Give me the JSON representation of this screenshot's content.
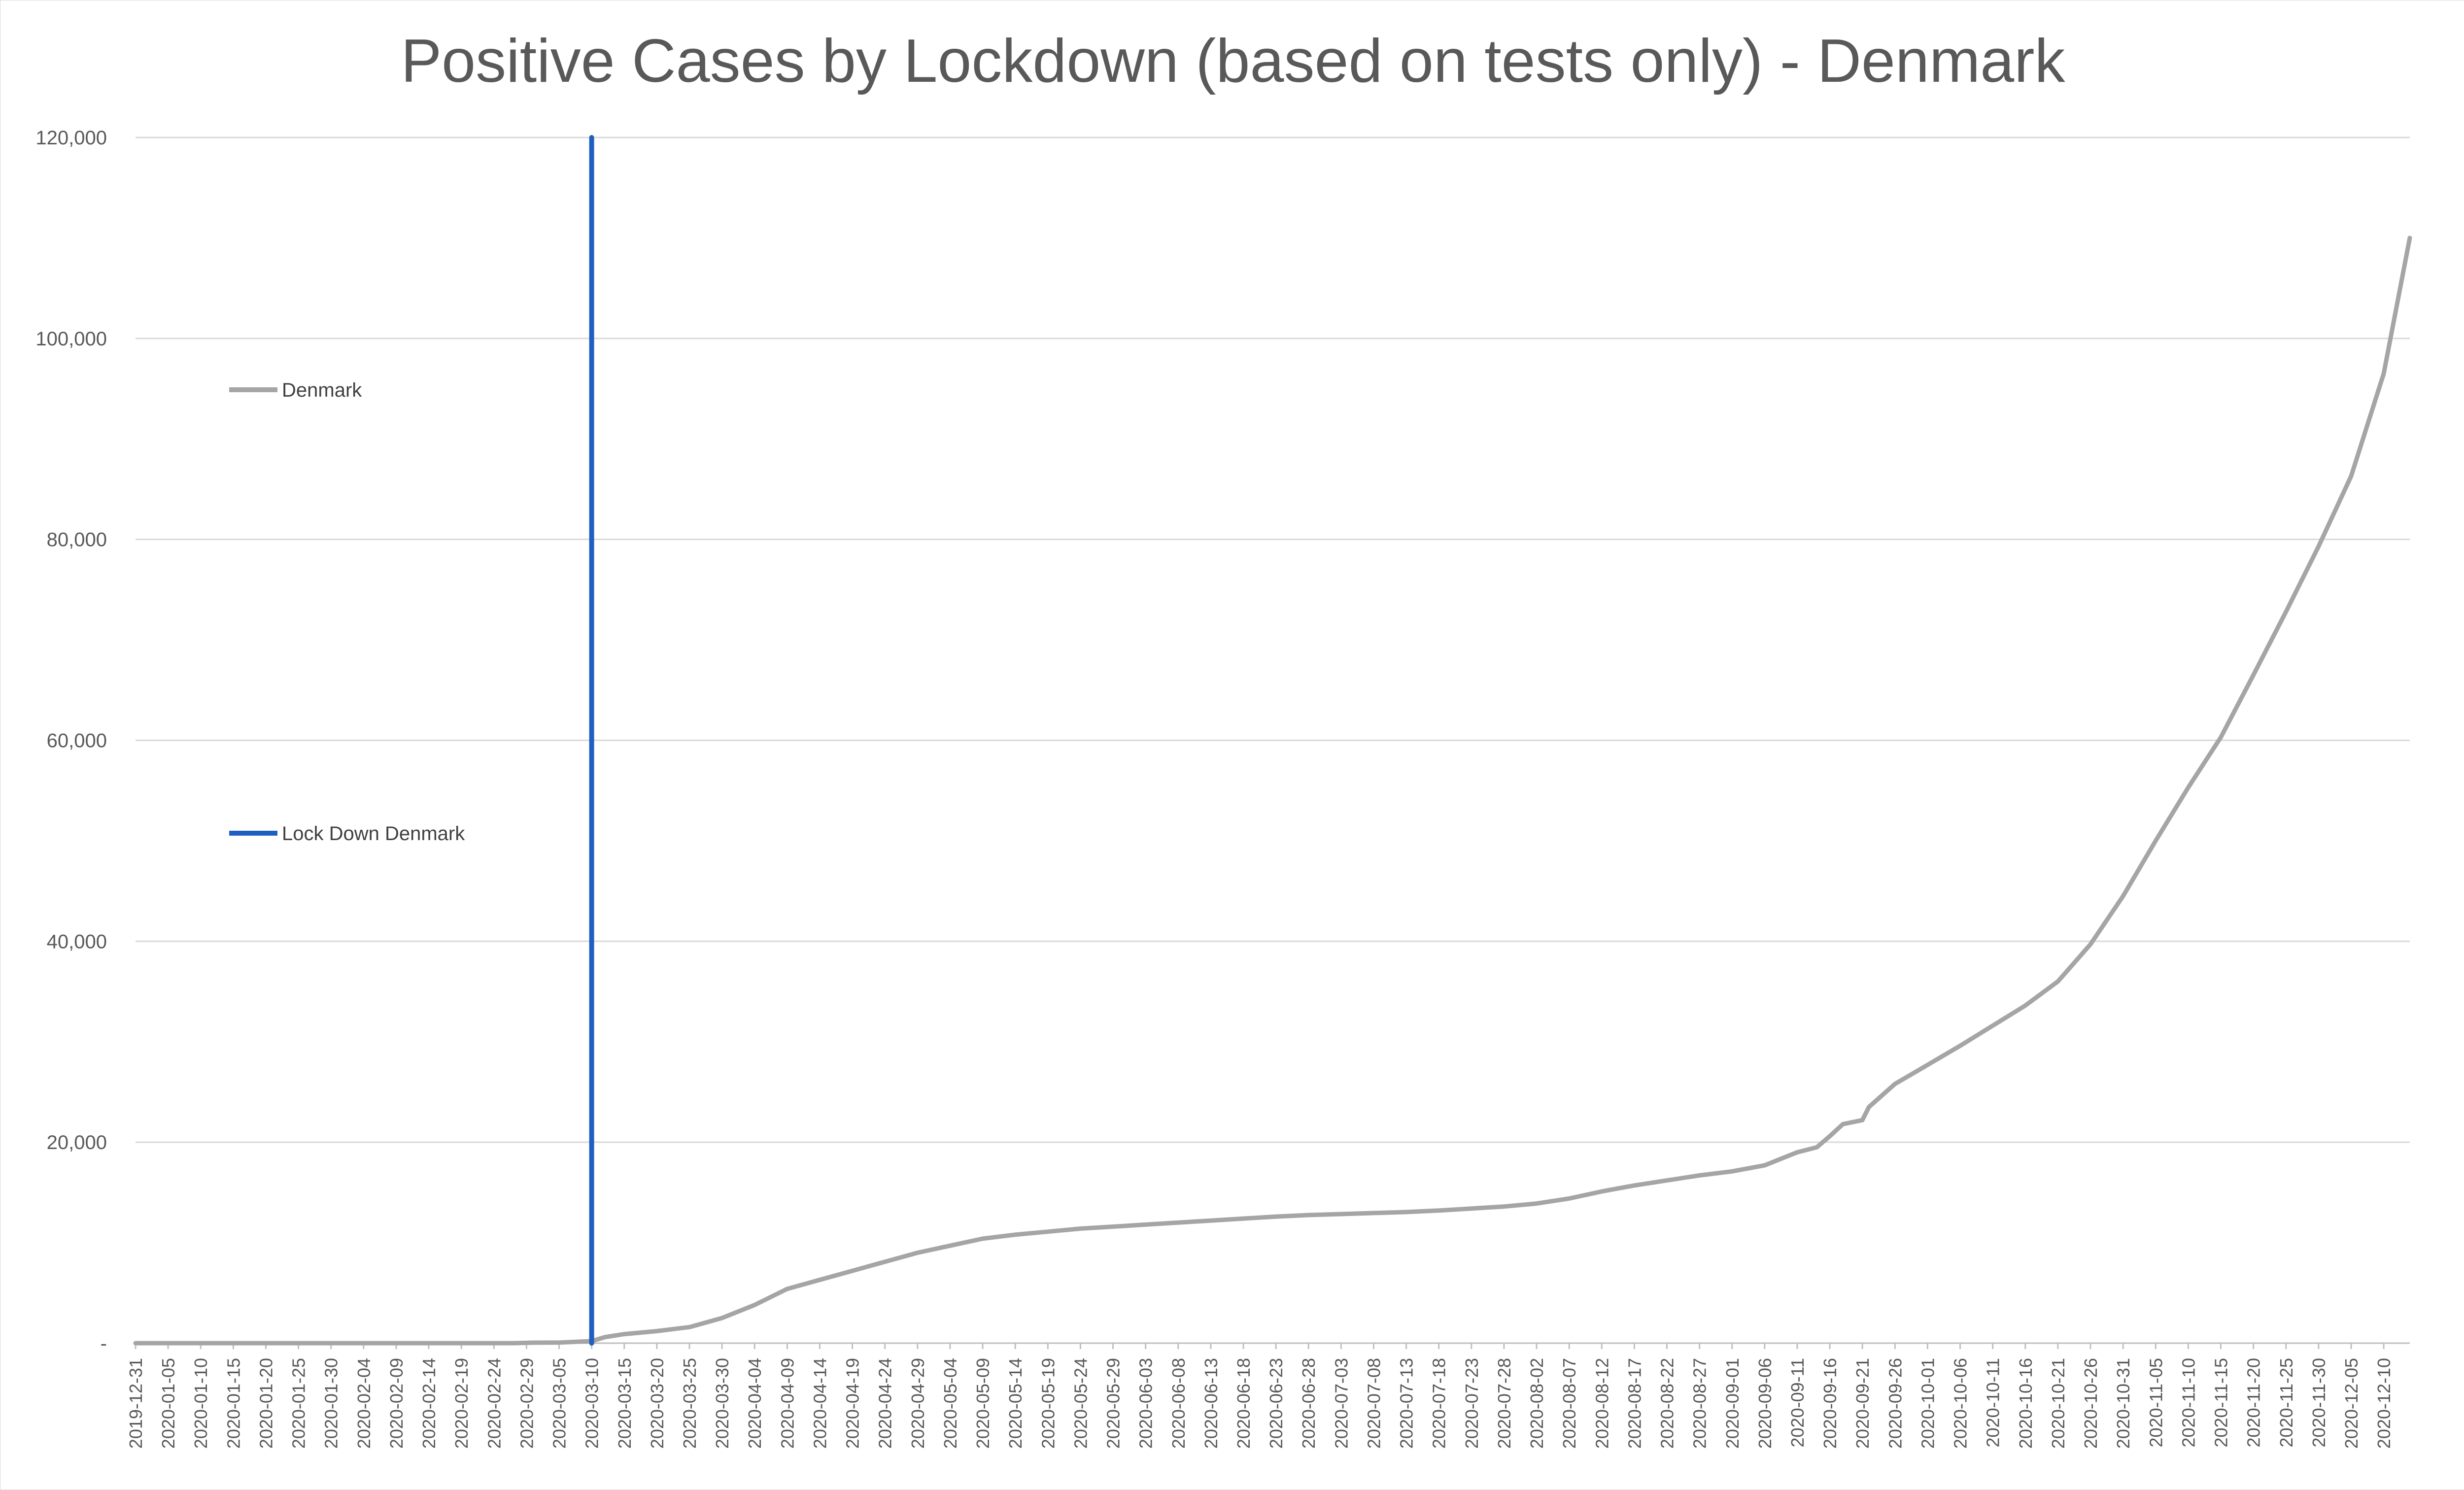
{
  "chart_data": {
    "type": "line",
    "title": "Positive Cases by Lockdown (based on tests only) - Denmark",
    "xlabel": "",
    "ylabel": "",
    "ylim": [
      0,
      120000
    ],
    "y_ticks": [
      {
        "value": 0,
        "label": "-"
      },
      {
        "value": 20000,
        "label": "20,000"
      },
      {
        "value": 40000,
        "label": "40,000"
      },
      {
        "value": 60000,
        "label": "60,000"
      },
      {
        "value": 80000,
        "label": "80,000"
      },
      {
        "value": 100000,
        "label": "100,000"
      },
      {
        "value": 120000,
        "label": "120,000"
      }
    ],
    "grid": "horizontal",
    "x_range": [
      "2019-12-31",
      "2020-12-14"
    ],
    "x_tick_labels": [
      "2019-12-31",
      "2020-01-05",
      "2020-01-10",
      "2020-01-15",
      "2020-01-20",
      "2020-01-25",
      "2020-01-30",
      "2020-02-04",
      "2020-02-09",
      "2020-02-14",
      "2020-02-19",
      "2020-02-24",
      "2020-02-29",
      "2020-03-05",
      "2020-03-10",
      "2020-03-15",
      "2020-03-20",
      "2020-03-25",
      "2020-03-30",
      "2020-04-04",
      "2020-04-09",
      "2020-04-14",
      "2020-04-19",
      "2020-04-24",
      "2020-04-29",
      "2020-05-04",
      "2020-05-09",
      "2020-05-14",
      "2020-05-19",
      "2020-05-24",
      "2020-05-29",
      "2020-06-03",
      "2020-06-08",
      "2020-06-13",
      "2020-06-18",
      "2020-06-23",
      "2020-06-28",
      "2020-07-03",
      "2020-07-08",
      "2020-07-13",
      "2020-07-18",
      "2020-07-23",
      "2020-07-28",
      "2020-08-02",
      "2020-08-07",
      "2020-08-12",
      "2020-08-17",
      "2020-08-22",
      "2020-08-27",
      "2020-09-01",
      "2020-09-06",
      "2020-09-11",
      "2020-09-16",
      "2020-09-21",
      "2020-09-26",
      "2020-10-01",
      "2020-10-06",
      "2020-10-11",
      "2020-10-16",
      "2020-10-21",
      "2020-10-26",
      "2020-10-31",
      "2020-11-05",
      "2020-11-10",
      "2020-11-15",
      "2020-11-20",
      "2020-11-25",
      "2020-11-30",
      "2020-12-05",
      "2020-12-10"
    ],
    "legend_placement": "left",
    "series": [
      {
        "name": "Denmark",
        "color": "#a5a5a5",
        "points": [
          {
            "x": "2019-12-31",
            "y": 0
          },
          {
            "x": "2020-02-27",
            "y": 0
          },
          {
            "x": "2020-03-01",
            "y": 50
          },
          {
            "x": "2020-03-05",
            "y": 60
          },
          {
            "x": "2020-03-10",
            "y": 200
          },
          {
            "x": "2020-03-12",
            "y": 600
          },
          {
            "x": "2020-03-15",
            "y": 900
          },
          {
            "x": "2020-03-20",
            "y": 1200
          },
          {
            "x": "2020-03-25",
            "y": 1600
          },
          {
            "x": "2020-03-30",
            "y": 2500
          },
          {
            "x": "2020-04-04",
            "y": 3800
          },
          {
            "x": "2020-04-09",
            "y": 5400
          },
          {
            "x": "2020-04-14",
            "y": 6300
          },
          {
            "x": "2020-04-19",
            "y": 7200
          },
          {
            "x": "2020-04-24",
            "y": 8100
          },
          {
            "x": "2020-04-29",
            "y": 9000
          },
          {
            "x": "2020-05-04",
            "y": 9700
          },
          {
            "x": "2020-05-09",
            "y": 10400
          },
          {
            "x": "2020-05-14",
            "y": 10800
          },
          {
            "x": "2020-05-19",
            "y": 11100
          },
          {
            "x": "2020-05-24",
            "y": 11400
          },
          {
            "x": "2020-05-29",
            "y": 11600
          },
          {
            "x": "2020-06-03",
            "y": 11800
          },
          {
            "x": "2020-06-08",
            "y": 12000
          },
          {
            "x": "2020-06-13",
            "y": 12200
          },
          {
            "x": "2020-06-18",
            "y": 12400
          },
          {
            "x": "2020-06-23",
            "y": 12600
          },
          {
            "x": "2020-06-28",
            "y": 12750
          },
          {
            "x": "2020-07-03",
            "y": 12850
          },
          {
            "x": "2020-07-08",
            "y": 12950
          },
          {
            "x": "2020-07-13",
            "y": 13050
          },
          {
            "x": "2020-07-18",
            "y": 13200
          },
          {
            "x": "2020-07-23",
            "y": 13400
          },
          {
            "x": "2020-07-28",
            "y": 13600
          },
          {
            "x": "2020-08-02",
            "y": 13900
          },
          {
            "x": "2020-08-07",
            "y": 14400
          },
          {
            "x": "2020-08-12",
            "y": 15100
          },
          {
            "x": "2020-08-17",
            "y": 15700
          },
          {
            "x": "2020-08-22",
            "y": 16200
          },
          {
            "x": "2020-08-27",
            "y": 16700
          },
          {
            "x": "2020-09-01",
            "y": 17100
          },
          {
            "x": "2020-09-06",
            "y": 17700
          },
          {
            "x": "2020-09-11",
            "y": 19000
          },
          {
            "x": "2020-09-14",
            "y": 19500
          },
          {
            "x": "2020-09-16",
            "y": 20600
          },
          {
            "x": "2020-09-18",
            "y": 21800
          },
          {
            "x": "2020-09-21",
            "y": 22200
          },
          {
            "x": "2020-09-22",
            "y": 23500
          },
          {
            "x": "2020-09-26",
            "y": 25800
          },
          {
            "x": "2020-10-01",
            "y": 27700
          },
          {
            "x": "2020-10-06",
            "y": 29600
          },
          {
            "x": "2020-10-11",
            "y": 31600
          },
          {
            "x": "2020-10-16",
            "y": 33600
          },
          {
            "x": "2020-10-21",
            "y": 36000
          },
          {
            "x": "2020-10-26",
            "y": 39700
          },
          {
            "x": "2020-10-31",
            "y": 44500
          },
          {
            "x": "2020-11-05",
            "y": 50000
          },
          {
            "x": "2020-11-10",
            "y": 55300
          },
          {
            "x": "2020-11-15",
            "y": 60300
          },
          {
            "x": "2020-11-20",
            "y": 66500
          },
          {
            "x": "2020-11-25",
            "y": 72800
          },
          {
            "x": "2020-11-30",
            "y": 79300
          },
          {
            "x": "2020-12-05",
            "y": 86300
          },
          {
            "x": "2020-12-10",
            "y": 96500
          },
          {
            "x": "2020-12-14",
            "y": 110000
          }
        ]
      },
      {
        "name": "Lock Down Denmark",
        "color": "#1f5fbf",
        "points": [
          {
            "x": "2020-03-10",
            "y": 0
          },
          {
            "x": "2020-03-10",
            "y": 120000
          }
        ]
      }
    ]
  }
}
